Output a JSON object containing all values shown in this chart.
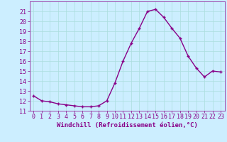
{
  "x": [
    0,
    1,
    2,
    3,
    4,
    5,
    6,
    7,
    8,
    9,
    10,
    11,
    12,
    13,
    14,
    15,
    16,
    17,
    18,
    19,
    20,
    21,
    22,
    23
  ],
  "y": [
    12.5,
    12.0,
    11.9,
    11.7,
    11.6,
    11.5,
    11.4,
    11.4,
    11.5,
    12.0,
    13.8,
    16.0,
    17.8,
    19.3,
    21.0,
    21.2,
    20.4,
    19.3,
    18.3,
    16.5,
    15.3,
    14.4,
    15.0,
    14.9
  ],
  "line_color": "#880088",
  "marker": "+",
  "marker_color": "#880088",
  "bg_color": "#cceeff",
  "grid_color": "#aadddd",
  "xlabel": "Windchill (Refroidissement éolien,°C)",
  "xlabel_color": "#880088",
  "tick_color": "#880088",
  "ylim": [
    11,
    22
  ],
  "xlim": [
    -0.5,
    23.5
  ],
  "yticks": [
    11,
    12,
    13,
    14,
    15,
    16,
    17,
    18,
    19,
    20,
    21
  ],
  "xticks": [
    0,
    1,
    2,
    3,
    4,
    5,
    6,
    7,
    8,
    9,
    10,
    11,
    12,
    13,
    14,
    15,
    16,
    17,
    18,
    19,
    20,
    21,
    22,
    23
  ],
  "font_size": 6.0,
  "xlabel_fontsize": 6.5,
  "linewidth": 1.0,
  "markersize": 3.5
}
